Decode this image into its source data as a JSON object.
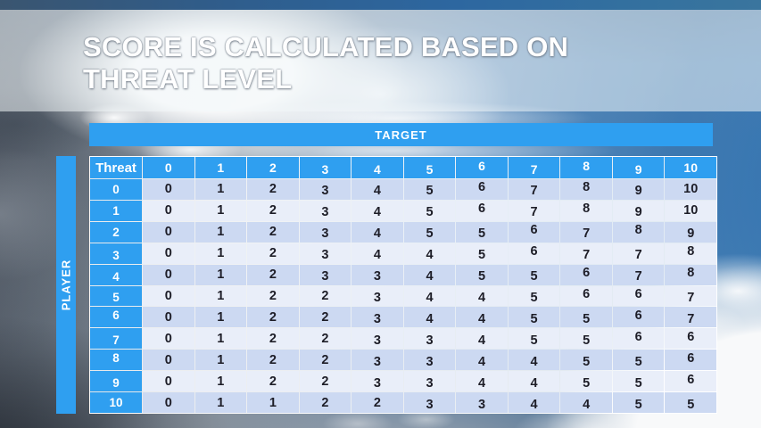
{
  "title": {
    "lines": [
      "SCORE IS CALCULATED BASED ON",
      "THREAT LEVEL"
    ]
  },
  "table": {
    "target_label": "TARGET",
    "player_label": "PLAYER",
    "corner_label": "Threat",
    "column_headers": [
      "0",
      "1",
      "2",
      "3",
      "4",
      "5",
      "6",
      "7",
      "8",
      "9",
      "10"
    ],
    "row_headers": [
      "0",
      "1",
      "2",
      "3",
      "4",
      "5",
      "6",
      "7",
      "8",
      "9",
      "10"
    ],
    "rows": [
      [
        0,
        1,
        2,
        3,
        4,
        5,
        6,
        7,
        8,
        9,
        10
      ],
      [
        0,
        1,
        2,
        3,
        4,
        5,
        6,
        7,
        8,
        9,
        10
      ],
      [
        0,
        1,
        2,
        3,
        4,
        5,
        5,
        6,
        7,
        8,
        9
      ],
      [
        0,
        1,
        2,
        3,
        4,
        4,
        5,
        6,
        7,
        7,
        8
      ],
      [
        0,
        1,
        2,
        3,
        3,
        4,
        5,
        5,
        6,
        7,
        8
      ],
      [
        0,
        1,
        2,
        2,
        3,
        4,
        4,
        5,
        6,
        6,
        7
      ],
      [
        0,
        1,
        2,
        2,
        3,
        4,
        4,
        5,
        5,
        6,
        7
      ],
      [
        0,
        1,
        2,
        2,
        3,
        3,
        4,
        5,
        5,
        6,
        6
      ],
      [
        0,
        1,
        2,
        2,
        3,
        3,
        4,
        4,
        5,
        5,
        6
      ],
      [
        0,
        1,
        2,
        2,
        3,
        3,
        4,
        4,
        5,
        5,
        6
      ],
      [
        0,
        1,
        1,
        2,
        2,
        3,
        3,
        4,
        4,
        5,
        5
      ]
    ]
  },
  "chart_data": {
    "type": "table",
    "title": "SCORE IS CALCULATED BASED ON THREAT LEVEL",
    "x_axis_label": "TARGET",
    "y_axis_label": "PLAYER",
    "corner_label": "Threat",
    "columns": [
      0,
      1,
      2,
      3,
      4,
      5,
      6,
      7,
      8,
      9,
      10
    ],
    "row_labels": [
      0,
      1,
      2,
      3,
      4,
      5,
      6,
      7,
      8,
      9,
      10
    ],
    "values": [
      [
        0,
        1,
        2,
        3,
        4,
        5,
        6,
        7,
        8,
        9,
        10
      ],
      [
        0,
        1,
        2,
        3,
        4,
        5,
        6,
        7,
        8,
        9,
        10
      ],
      [
        0,
        1,
        2,
        3,
        4,
        5,
        5,
        6,
        7,
        8,
        9
      ],
      [
        0,
        1,
        2,
        3,
        4,
        4,
        5,
        6,
        7,
        7,
        8
      ],
      [
        0,
        1,
        2,
        3,
        3,
        4,
        5,
        5,
        6,
        7,
        8
      ],
      [
        0,
        1,
        2,
        2,
        3,
        4,
        4,
        5,
        6,
        6,
        7
      ],
      [
        0,
        1,
        2,
        2,
        3,
        4,
        4,
        5,
        5,
        6,
        7
      ],
      [
        0,
        1,
        2,
        2,
        3,
        3,
        4,
        5,
        5,
        6,
        6
      ],
      [
        0,
        1,
        2,
        2,
        3,
        3,
        4,
        4,
        5,
        5,
        6
      ],
      [
        0,
        1,
        2,
        2,
        3,
        3,
        4,
        4,
        5,
        5,
        6
      ],
      [
        0,
        1,
        1,
        2,
        2,
        3,
        3,
        4,
        4,
        5,
        5
      ]
    ]
  },
  "colors": {
    "accent_blue": "#2f9ff0",
    "top_bar_blue": "#2d67a0",
    "band_dark": "#ccd9f2",
    "band_light": "#e9eef9",
    "cell_text": "#1d1d27",
    "title_text": "#ffffff"
  }
}
